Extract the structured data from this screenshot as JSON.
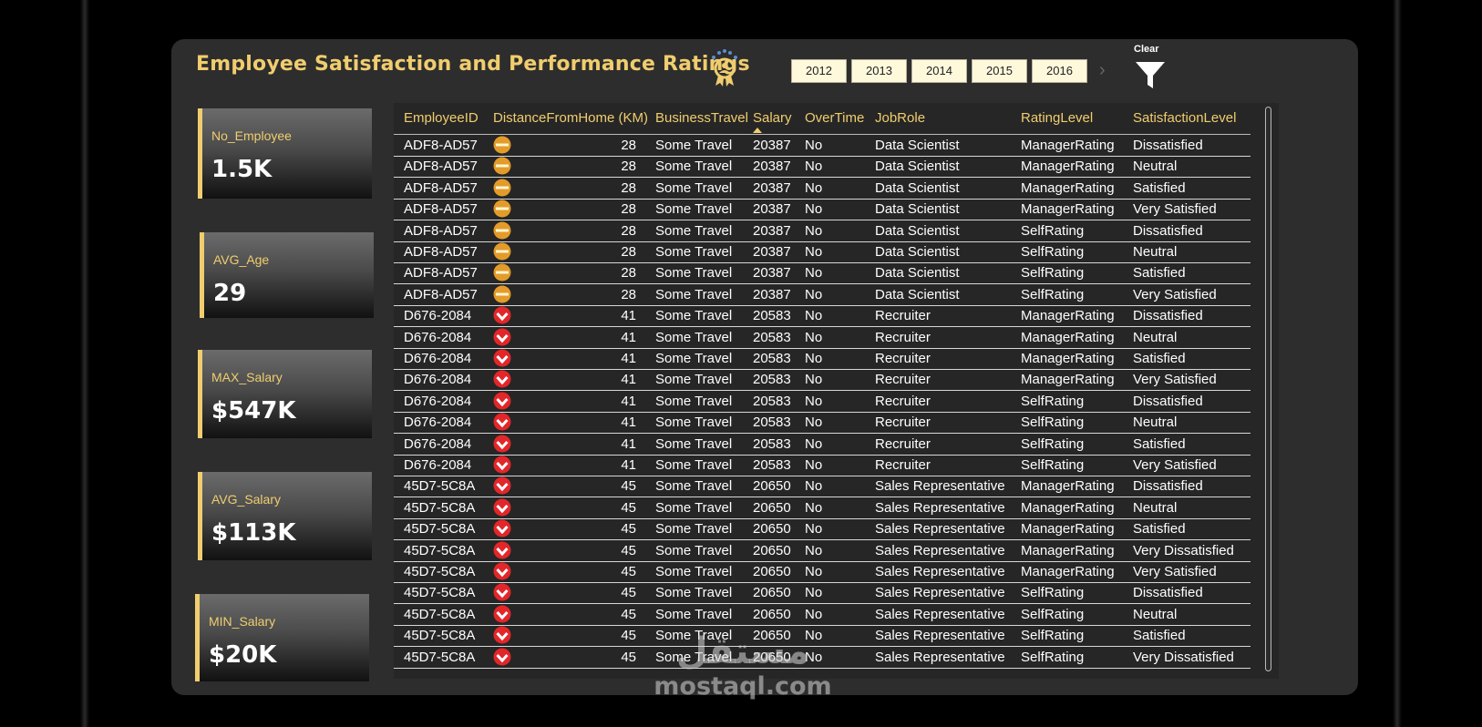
{
  "dashboard": {
    "title": "Employee Satisfaction and Performance Ratings",
    "clear_label": "Clear",
    "years": [
      "2012",
      "2013",
      "2014",
      "2015",
      "2016"
    ],
    "accent_color": "#f0cd6e",
    "icons": {
      "header": "award-badge-icon",
      "filter": "filter-funnel-icon",
      "next": "chevron-right-icon"
    }
  },
  "cards": [
    {
      "label": "No_Employee",
      "value": "1.5K"
    },
    {
      "label": "AVG_Age",
      "value": "29"
    },
    {
      "label": "MAX_Salary",
      "value": "$547K"
    },
    {
      "label": "AVG_Salary",
      "value": "$113K"
    },
    {
      "label": "MIN_Salary",
      "value": "$20K"
    }
  ],
  "table": {
    "sorted_by": "Salary",
    "columns": [
      "EmployeeID",
      "DistanceFromHome (KM)",
      "BusinessTravel",
      "Salary",
      "OverTime",
      "JobRole",
      "RatingLevel",
      "SatisfactionLevel"
    ],
    "status_colors": {
      "neutral": "#e39b2a",
      "negative": "#e3262a"
    },
    "rows": [
      [
        "ADF8-AD57",
        "neutral",
        "28",
        "Some Travel",
        "20387",
        "No",
        "Data Scientist",
        "ManagerRating",
        "Dissatisfied"
      ],
      [
        "ADF8-AD57",
        "neutral",
        "28",
        "Some Travel",
        "20387",
        "No",
        "Data Scientist",
        "ManagerRating",
        "Neutral"
      ],
      [
        "ADF8-AD57",
        "neutral",
        "28",
        "Some Travel",
        "20387",
        "No",
        "Data Scientist",
        "ManagerRating",
        "Satisfied"
      ],
      [
        "ADF8-AD57",
        "neutral",
        "28",
        "Some Travel",
        "20387",
        "No",
        "Data Scientist",
        "ManagerRating",
        "Very Satisfied"
      ],
      [
        "ADF8-AD57",
        "neutral",
        "28",
        "Some Travel",
        "20387",
        "No",
        "Data Scientist",
        "SelfRating",
        "Dissatisfied"
      ],
      [
        "ADF8-AD57",
        "neutral",
        "28",
        "Some Travel",
        "20387",
        "No",
        "Data Scientist",
        "SelfRating",
        "Neutral"
      ],
      [
        "ADF8-AD57",
        "neutral",
        "28",
        "Some Travel",
        "20387",
        "No",
        "Data Scientist",
        "SelfRating",
        "Satisfied"
      ],
      [
        "ADF8-AD57",
        "neutral",
        "28",
        "Some Travel",
        "20387",
        "No",
        "Data Scientist",
        "SelfRating",
        "Very Satisfied"
      ],
      [
        "D676-2084",
        "negative",
        "41",
        "Some Travel",
        "20583",
        "No",
        "Recruiter",
        "ManagerRating",
        "Dissatisfied"
      ],
      [
        "D676-2084",
        "negative",
        "41",
        "Some Travel",
        "20583",
        "No",
        "Recruiter",
        "ManagerRating",
        "Neutral"
      ],
      [
        "D676-2084",
        "negative",
        "41",
        "Some Travel",
        "20583",
        "No",
        "Recruiter",
        "ManagerRating",
        "Satisfied"
      ],
      [
        "D676-2084",
        "negative",
        "41",
        "Some Travel",
        "20583",
        "No",
        "Recruiter",
        "ManagerRating",
        "Very Satisfied"
      ],
      [
        "D676-2084",
        "negative",
        "41",
        "Some Travel",
        "20583",
        "No",
        "Recruiter",
        "SelfRating",
        "Dissatisfied"
      ],
      [
        "D676-2084",
        "negative",
        "41",
        "Some Travel",
        "20583",
        "No",
        "Recruiter",
        "SelfRating",
        "Neutral"
      ],
      [
        "D676-2084",
        "negative",
        "41",
        "Some Travel",
        "20583",
        "No",
        "Recruiter",
        "SelfRating",
        "Satisfied"
      ],
      [
        "D676-2084",
        "negative",
        "41",
        "Some Travel",
        "20583",
        "No",
        "Recruiter",
        "SelfRating",
        "Very Satisfied"
      ],
      [
        "45D7-5C8A",
        "negative",
        "45",
        "Some Travel",
        "20650",
        "No",
        "Sales Representative",
        "ManagerRating",
        "Dissatisfied"
      ],
      [
        "45D7-5C8A",
        "negative",
        "45",
        "Some Travel",
        "20650",
        "No",
        "Sales Representative",
        "ManagerRating",
        "Neutral"
      ],
      [
        "45D7-5C8A",
        "negative",
        "45",
        "Some Travel",
        "20650",
        "No",
        "Sales Representative",
        "ManagerRating",
        "Satisfied"
      ],
      [
        "45D7-5C8A",
        "negative",
        "45",
        "Some Travel",
        "20650",
        "No",
        "Sales Representative",
        "ManagerRating",
        "Very Dissatisfied"
      ],
      [
        "45D7-5C8A",
        "negative",
        "45",
        "Some Travel",
        "20650",
        "No",
        "Sales Representative",
        "ManagerRating",
        "Very Satisfied"
      ],
      [
        "45D7-5C8A",
        "negative",
        "45",
        "Some Travel",
        "20650",
        "No",
        "Sales Representative",
        "SelfRating",
        "Dissatisfied"
      ],
      [
        "45D7-5C8A",
        "negative",
        "45",
        "Some Travel",
        "20650",
        "No",
        "Sales Representative",
        "SelfRating",
        "Neutral"
      ],
      [
        "45D7-5C8A",
        "negative",
        "45",
        "Some Travel",
        "20650",
        "No",
        "Sales Representative",
        "SelfRating",
        "Satisfied"
      ],
      [
        "45D7-5C8A",
        "negative",
        "45",
        "Some Travel",
        "20650",
        "No",
        "Sales Representative",
        "SelfRating",
        "Very Dissatisfied"
      ]
    ]
  },
  "watermark": {
    "arabic": "مستقل",
    "latin": "mostaql.com"
  }
}
